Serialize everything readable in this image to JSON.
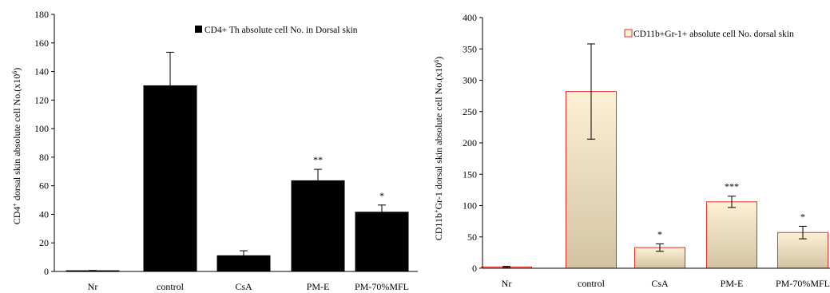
{
  "chart_data": [
    {
      "type": "bar",
      "categories": [
        "Nr",
        "control",
        "CsA",
        "PM-E",
        "PM-70%MFL"
      ],
      "values": [
        0.5,
        130,
        11,
        63.5,
        41.5
      ],
      "errors": [
        0.2,
        23.5,
        3.5,
        8,
        5
      ],
      "significance": [
        "",
        "",
        "",
        "**",
        "*"
      ],
      "ylim": [
        0,
        180
      ],
      "yticks": [
        0,
        20,
        40,
        60,
        80,
        100,
        120,
        140,
        160,
        180
      ],
      "ylabel_main": "CD4",
      "ylabel_sup": "+",
      "ylabel_rest": " dorsal skin  absolute cell No.(x10",
      "ylabel_exp": "6",
      "ylabel_end": ")",
      "legend": "CD4+ Th absolute cell No. in Dorsal skin",
      "legend_position": "top-right",
      "bar_fill": "#000000",
      "bar_stroke": "#000000"
    },
    {
      "type": "bar",
      "categories": [
        "Nr",
        "control",
        "CsA",
        "PM-E",
        "PM-70%MFL"
      ],
      "values": [
        2,
        282,
        33,
        106,
        57
      ],
      "errors": [
        1,
        76,
        6,
        9,
        10
      ],
      "significance": [
        "",
        "",
        "*",
        "***",
        "*"
      ],
      "ylim": [
        0,
        400
      ],
      "yticks": [
        0,
        50,
        100,
        150,
        200,
        250,
        300,
        350,
        400
      ],
      "ylabel_main": "CD11b",
      "ylabel_sup": "+",
      "ylabel_rest": "Gr-1 dorsal skin  absolute cell No.(x10",
      "ylabel_exp": "6",
      "ylabel_end": ")",
      "legend": "CD11b+Gr-1+ absolute cell No. dorsal skin",
      "legend_position": "top-right",
      "bar_fill_top": "#fdf1d6",
      "bar_fill_bottom": "#d2c4a2",
      "bar_stroke": "#e0302a"
    }
  ]
}
